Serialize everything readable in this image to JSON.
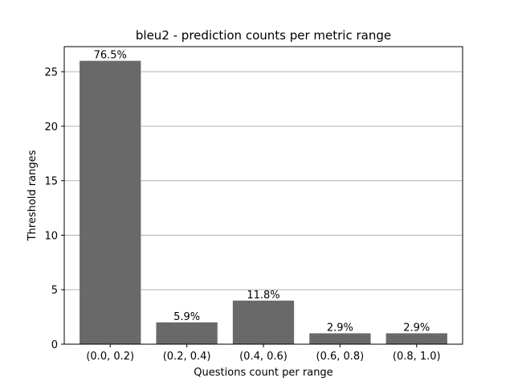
{
  "chart_data": {
    "type": "bar",
    "title": "bleu2 - prediction counts per metric range",
    "xlabel": "Questions count per range",
    "ylabel": "Threshold ranges",
    "categories": [
      "(0.0, 0.2)",
      "(0.2, 0.4)",
      "(0.4, 0.6)",
      "(0.6, 0.8)",
      "(0.8, 1.0)"
    ],
    "values": [
      26,
      2,
      4,
      1,
      1
    ],
    "data_labels": [
      "76.5%",
      "5.9%",
      "11.8%",
      "2.9%",
      "2.9%"
    ],
    "ylim": [
      0,
      27.3
    ],
    "yticks": [
      0,
      5,
      10,
      15,
      20,
      25
    ],
    "grid": "y",
    "legend": "none",
    "bar_color": "#696969",
    "grid_color": "#b0b0b0"
  }
}
